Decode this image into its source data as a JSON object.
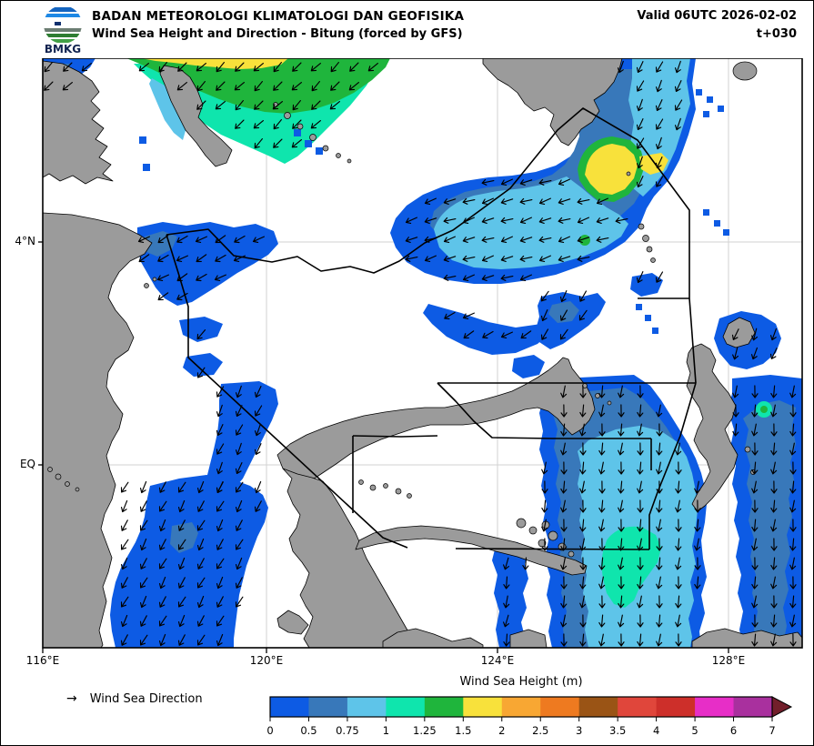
{
  "header": {
    "agency": "BADAN METEOROLOGI KLIMATOLOGI DAN GEOFISIKA",
    "product": "Wind Sea Height and Direction - Bitung (forced by GFS)",
    "valid": "Valid 06UTC 2026-02-02",
    "tstep": "t+030",
    "logo_text": "BMKG"
  },
  "axes": {
    "x_ticks": [
      "116°E",
      "120°E",
      "124°E",
      "128°E"
    ],
    "y_ticks": [
      "4°N",
      "EQ"
    ]
  },
  "legend": {
    "symbol": "→",
    "label": "Wind Sea Direction"
  },
  "colorbar": {
    "title": "Wind Sea Height (m)",
    "tick_labels": [
      "0",
      "0.5",
      "0.75",
      "1",
      "1.25",
      "1.5",
      "2",
      "2.5",
      "3",
      "3.5",
      "4",
      "5",
      "6",
      "7"
    ],
    "colors": [
      "#0d5be4",
      "#3878ba",
      "#5ec4e9",
      "#0fe5ad",
      "#1fb53c",
      "#f8e13b",
      "#f8a733",
      "#ee7a20",
      "#9a5415",
      "#e0463b",
      "#cd2f2a",
      "#e72ec7",
      "#a9309e"
    ],
    "over_color": "#721f2b"
  },
  "map": {
    "land_color": "#9b9b9b",
    "sea_color": "#ffffff",
    "grid_color": "#d2d2d2",
    "boundary_color": "#000000"
  }
}
